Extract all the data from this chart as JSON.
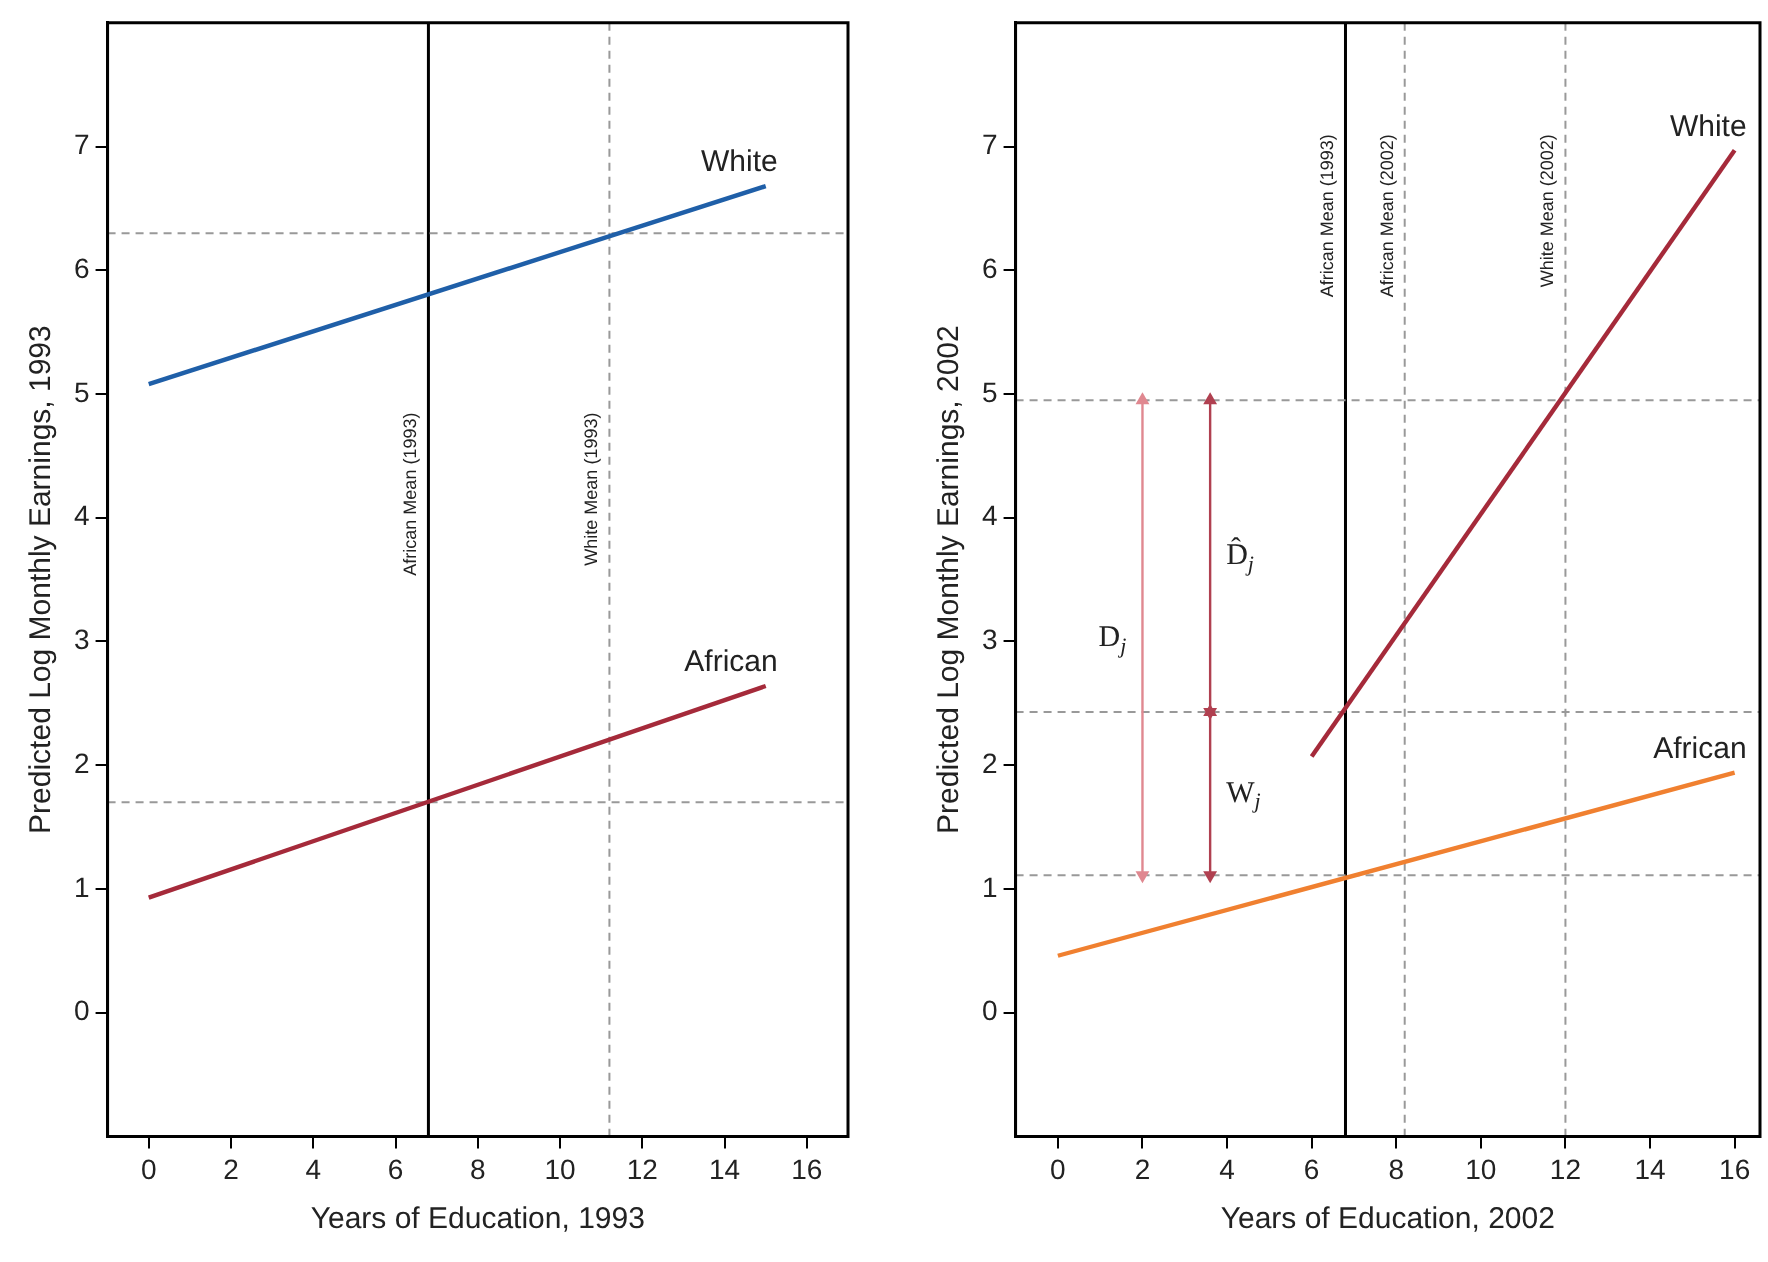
{
  "chart_data": [
    {
      "type": "line",
      "xlabel": "Years of Education, 1993",
      "ylabel": "Predicted Log Monthly Earnings, 1993",
      "xlim": [
        -1,
        17
      ],
      "ylim": [
        -1,
        8
      ],
      "xticks": [
        0,
        2,
        4,
        6,
        8,
        10,
        12,
        14,
        16
      ],
      "yticks": [
        0,
        1,
        2,
        3,
        4,
        5,
        6,
        7
      ],
      "grid": false,
      "legend": false,
      "marker": "none",
      "series": [
        {
          "name": "White",
          "color": "#1f5fa8",
          "x": [
            0,
            15
          ],
          "values": [
            5.08,
            6.68
          ]
        },
        {
          "name": "African",
          "color": "#a52a3a",
          "x": [
            0,
            15
          ],
          "values": [
            0.93,
            2.64
          ]
        }
      ],
      "ref_lines": [
        {
          "axis": "x",
          "value": 6.8,
          "label": "African Mean (1993)",
          "color": "#000000",
          "line_style": "solid"
        },
        {
          "axis": "x",
          "value": 11.2,
          "label": "White Mean (1993)",
          "color": "#999999",
          "line_style": "dashed"
        },
        {
          "axis": "y",
          "value": 6.3,
          "color": "#999999",
          "line_style": "dashed"
        },
        {
          "axis": "y",
          "value": 1.7,
          "color": "#999999",
          "line_style": "dashed"
        }
      ]
    },
    {
      "type": "line",
      "xlabel": "Years of Education, 2002",
      "ylabel": "Predicted Log Monthly Earnings, 2002",
      "xlim": [
        -1,
        16.6
      ],
      "ylim": [
        -1,
        8
      ],
      "xticks": [
        0,
        2,
        4,
        6,
        8,
        10,
        12,
        14,
        16
      ],
      "yticks": [
        0,
        1,
        2,
        3,
        4,
        5,
        6,
        7
      ],
      "grid": false,
      "legend": false,
      "marker": "none",
      "series": [
        {
          "name": "White",
          "color": "#a52a3a",
          "x": [
            6,
            16
          ],
          "values": [
            2.07,
            6.97
          ]
        },
        {
          "name": "African",
          "color": "#f08030",
          "x": [
            0,
            16
          ],
          "values": [
            0.46,
            1.94
          ]
        },
        {
          "color": "#e08890",
          "x": [
            2,
            2
          ],
          "values": [
            1.11,
            4.95
          ],
          "marker": "triangle"
        },
        {
          "color": "#b04050",
          "x": [
            3.6,
            3.6
          ],
          "values": [
            2.43,
            4.95
          ],
          "marker": "triangle"
        },
        {
          "color": "#b04050",
          "x": [
            3.6,
            3.6
          ],
          "values": [
            1.11,
            2.43
          ],
          "marker": "triangle"
        }
      ],
      "ref_lines": [
        {
          "axis": "x",
          "value": 6.8,
          "label": "African Mean (1993)",
          "color": "#000000",
          "line_style": "solid"
        },
        {
          "axis": "x",
          "value": 8.2,
          "label": "African Mean (2002)",
          "color": "#999999",
          "line_style": "dashed"
        },
        {
          "axis": "x",
          "value": 12,
          "label": "White Mean (2002)",
          "color": "#999999",
          "line_style": "dashed"
        },
        {
          "axis": "y",
          "value": 4.95,
          "color": "#999999",
          "line_style": "dashed"
        },
        {
          "axis": "y",
          "value": 2.43,
          "color": "#999999",
          "line_style": "dashed"
        },
        {
          "axis": "y",
          "value": 1.11,
          "color": "#999999",
          "line_style": "dashed"
        }
      ],
      "annotations": [
        "D$_{j}$",
        "D̂$_{j}$",
        "W$_{j}$"
      ]
    }
  ]
}
